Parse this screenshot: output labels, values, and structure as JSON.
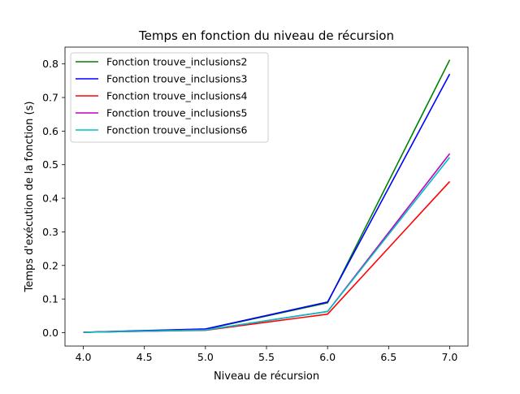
{
  "chart_data": {
    "type": "line",
    "title": "Temps en fonction du niveau de récursion",
    "xlabel": "Niveau de récursion",
    "ylabel": "Temps d'exécution de la fonction (s)",
    "xlim": [
      3.85,
      7.15
    ],
    "ylim": [
      -0.04,
      0.85
    ],
    "xticks": [
      4.0,
      4.5,
      5.0,
      5.5,
      6.0,
      6.5,
      7.0
    ],
    "xtick_labels": [
      "4.0",
      "4.5",
      "5.0",
      "5.5",
      "6.0",
      "6.5",
      "7.0"
    ],
    "yticks": [
      0.0,
      0.1,
      0.2,
      0.3,
      0.4,
      0.5,
      0.6,
      0.7,
      0.8
    ],
    "ytick_labels": [
      "0.0",
      "0.1",
      "0.2",
      "0.3",
      "0.4",
      "0.5",
      "0.6",
      "0.7",
      "0.8"
    ],
    "grid": false,
    "legend_position": "top-left",
    "x": [
      4,
      5,
      6,
      7
    ],
    "series": [
      {
        "name": "Fonction trouve_inclusions2",
        "color": "#008000",
        "values": [
          0.001,
          0.01,
          0.089,
          0.812
        ]
      },
      {
        "name": "Fonction trouve_inclusions3",
        "color": "#0000ff",
        "values": [
          0.001,
          0.011,
          0.091,
          0.77
        ]
      },
      {
        "name": "Fonction trouve_inclusions4",
        "color": "#ff0000",
        "values": [
          0.001,
          0.007,
          0.055,
          0.45
        ]
      },
      {
        "name": "Fonction trouve_inclusions5",
        "color": "#bf00bf",
        "values": [
          0.001,
          0.008,
          0.063,
          0.533
        ]
      },
      {
        "name": "Fonction trouve_inclusions6",
        "color": "#00bfbf",
        "values": [
          0.001,
          0.008,
          0.063,
          0.522
        ]
      }
    ]
  }
}
